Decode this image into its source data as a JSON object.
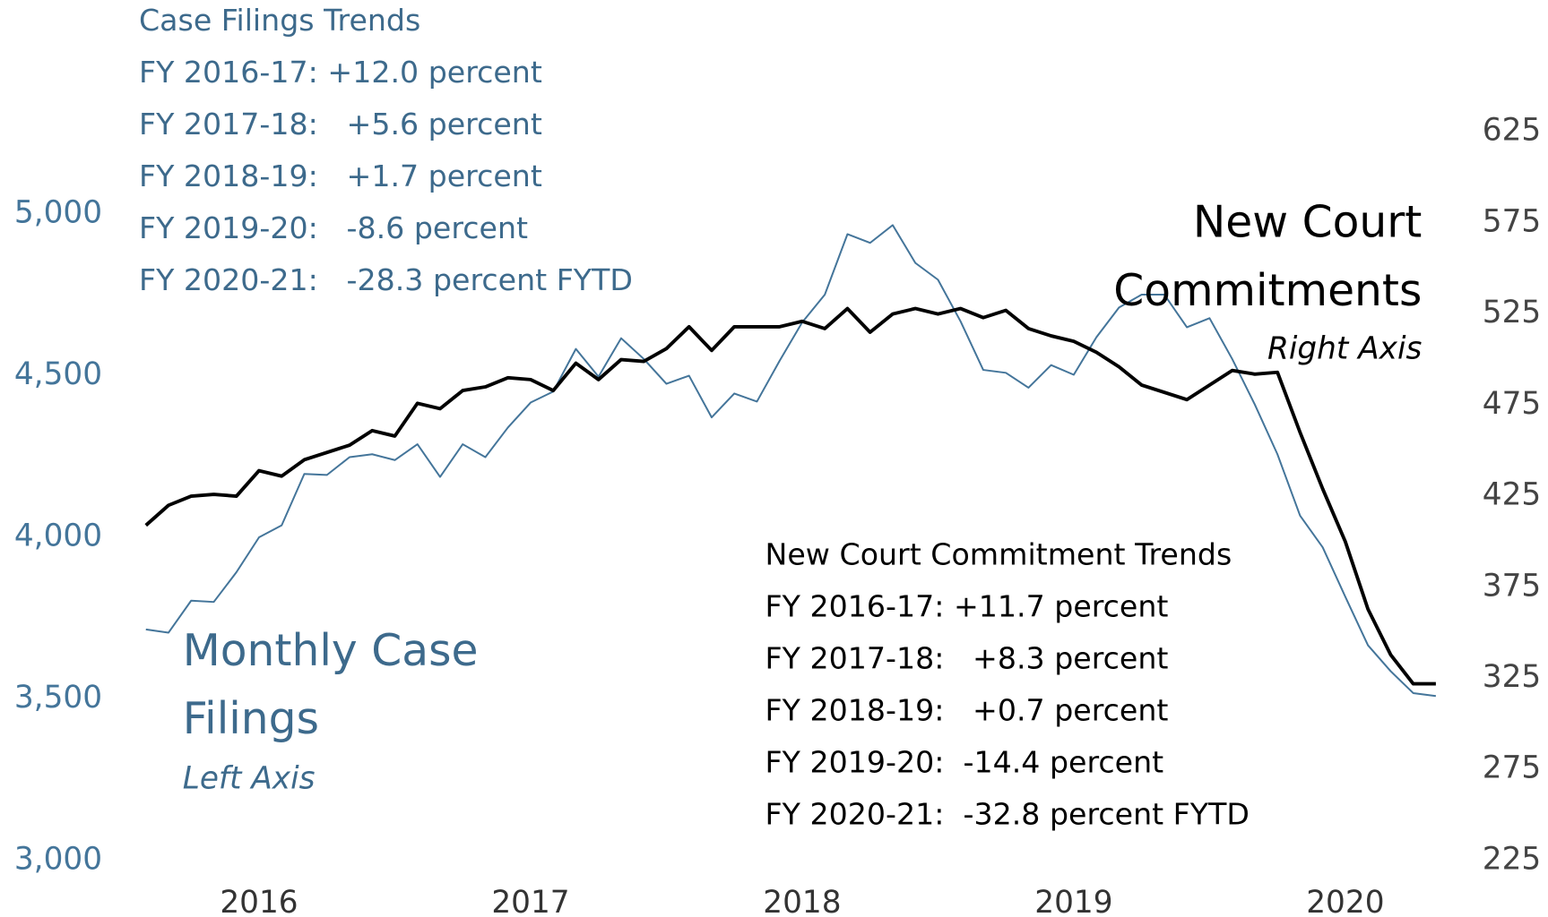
{
  "chart_data": {
    "type": "line",
    "categories": [
      null,
      null,
      null,
      null,
      null,
      "2016",
      null,
      null,
      null,
      null,
      null,
      null,
      null,
      null,
      null,
      null,
      null,
      "2017",
      null,
      null,
      null,
      null,
      null,
      null,
      null,
      null,
      null,
      null,
      null,
      "2018",
      null,
      null,
      null,
      null,
      null,
      null,
      null,
      null,
      null,
      null,
      null,
      "2019",
      null,
      null,
      null,
      null,
      null,
      null,
      null,
      null,
      null,
      null,
      null,
      "2020",
      null,
      null,
      null,
      null
    ],
    "series": [
      {
        "name": "Monthly Case Filings",
        "note": "Left Axis",
        "color": "#44759a",
        "axis": "y",
        "values": [
          3715,
          3705,
          3804,
          3800,
          3892,
          4000,
          4037,
          4196,
          4193,
          4248,
          4257,
          4239,
          4288,
          4187,
          4288,
          4248,
          4340,
          4417,
          4451,
          4583,
          4497,
          4616,
          4552,
          4475,
          4500,
          4371,
          4445,
          4420,
          4546,
          4665,
          4751,
          4938,
          4911,
          4966,
          4849,
          4797,
          4668,
          4518,
          4509,
          4463,
          4533,
          4503,
          4619,
          4711,
          4751,
          4751,
          4650,
          4678,
          4552,
          4411,
          4257,
          4067,
          3969,
          3816,
          3666,
          3586,
          3518,
          3509
        ]
      },
      {
        "name": "New Court Commitments",
        "note": "Right Axis",
        "color": "#000000",
        "axis": "y2",
        "values": [
          409,
          420,
          425,
          426,
          425,
          439,
          436,
          445,
          449,
          453,
          461,
          458,
          476,
          473,
          483,
          485,
          490,
          489,
          483,
          498,
          489,
          500,
          499,
          506,
          518,
          505,
          518,
          518,
          518,
          521,
          517,
          528,
          515,
          525,
          528,
          525,
          528,
          523,
          527,
          517,
          513,
          510,
          504,
          496,
          486,
          482,
          478,
          486,
          494,
          492,
          493,
          460,
          429,
          400,
          363,
          338,
          322,
          322
        ]
      }
    ],
    "ylim": [
      3000,
      5000
    ],
    "yticks": [
      {
        "value": 3000,
        "label": "3,000"
      },
      {
        "value": 3500,
        "label": "3,500"
      },
      {
        "value": 4000,
        "label": "4,000"
      },
      {
        "value": 4500,
        "label": "4,500"
      },
      {
        "value": 5000,
        "label": "5,000"
      }
    ],
    "y2lim": [
      225,
      625
    ],
    "y2ticks": [
      225,
      275,
      325,
      375,
      425,
      475,
      525,
      575,
      625
    ],
    "grid": false,
    "trend_notes": [
      {
        "title": "Case Filings Trends",
        "color": "#3d6a8c",
        "lines": [
          "FY 2016-17: +12.0 percent",
          "FY 2017-18:   +5.6 percent",
          "FY 2018-19:   +1.7 percent",
          "FY 2019-20:   -8.6 percent",
          "FY 2020-21:   -28.3 percent FYTD"
        ]
      },
      {
        "title": "New Court Commitment Trends",
        "color": "#000000",
        "lines": [
          "FY 2016-17: +11.7 percent",
          "FY 2017-18:   +8.3 percent",
          "FY 2018-19:   +0.7 percent",
          "FY 2019-20:  -14.4 percent",
          "FY 2020-21:  -32.8 percent FYTD"
        ]
      }
    ]
  }
}
